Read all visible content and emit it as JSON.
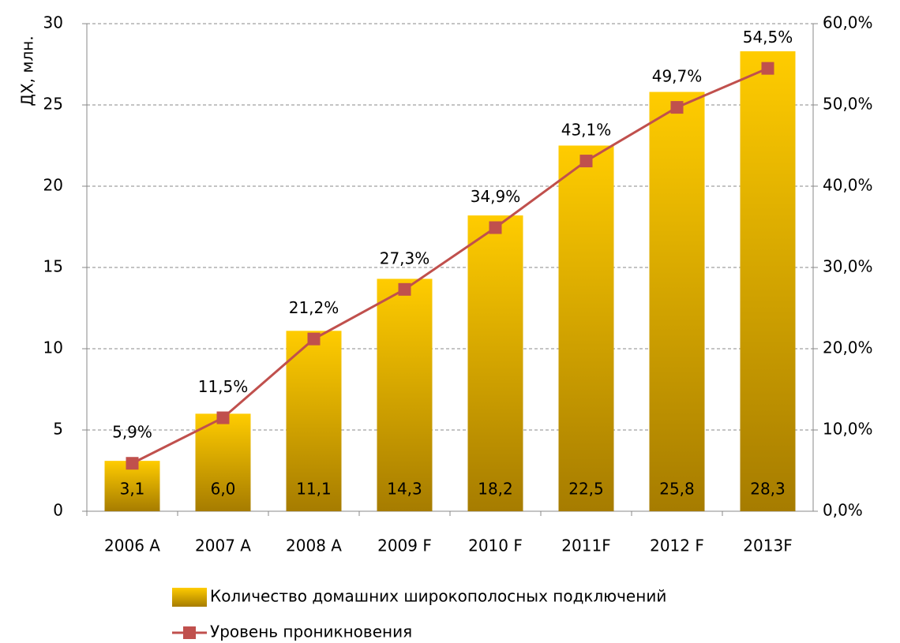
{
  "chart_data": {
    "type": "bar",
    "y_label": "ДХ, млн.",
    "categories": [
      "2006 A",
      "2007 A",
      "2008 A",
      "2009 F",
      "2010 F",
      "2011F",
      "2012 F",
      "2013F"
    ],
    "series": [
      {
        "name": "Количество домашних широкополосных подключений",
        "type": "bar",
        "color": "#f5be00",
        "values": [
          3.1,
          6.0,
          11.1,
          14.3,
          18.2,
          22.5,
          25.8,
          28.3
        ],
        "value_labels": [
          "3,1",
          "6,0",
          "11,1",
          "14,3",
          "18,2",
          "22,5",
          "25,8",
          "28,3"
        ]
      },
      {
        "name": "Уровень проникновения",
        "type": "line",
        "axis": "y2",
        "color": "#c0504d",
        "values": [
          5.9,
          11.5,
          21.2,
          27.3,
          34.9,
          43.1,
          49.7,
          54.5
        ],
        "value_labels": [
          "5,9%",
          "11,5%",
          "21,2%",
          "27,3%",
          "34,9%",
          "43,1%",
          "49,7%",
          "54,5%"
        ]
      }
    ],
    "ylim": [
      0,
      30
    ],
    "yticks": [
      0,
      5,
      10,
      15,
      20,
      25,
      30
    ],
    "y2lim": [
      0,
      60
    ],
    "y2ticks": [
      {
        "value": 0,
        "label": "0,0%"
      },
      {
        "value": 10,
        "label": "10,0%"
      },
      {
        "value": 20,
        "label": "20,0%"
      },
      {
        "value": 30,
        "label": "30,0%"
      },
      {
        "value": 40,
        "label": "40,0%"
      },
      {
        "value": 50,
        "label": "50,0%"
      },
      {
        "value": 60,
        "label": "60,0%"
      }
    ],
    "grid": true,
    "legend": "bottom"
  }
}
